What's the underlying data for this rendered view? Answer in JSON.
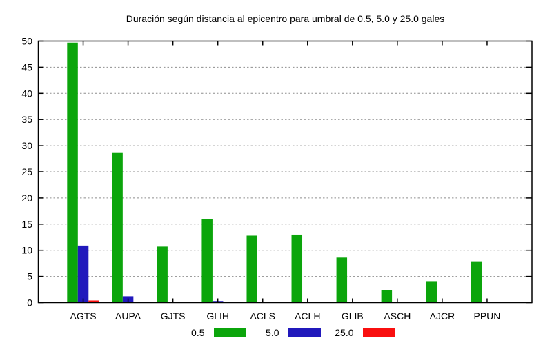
{
  "title": "Duración según distancia al epicentro para umbral de 0.5, 5.0 y 25.0 gales",
  "chart_data": {
    "type": "bar",
    "title": "Duración según distancia al epicentro para umbral de 0.5, 5.0 y 25.0 gales",
    "categories": [
      "AGTS",
      "AUPA",
      "GJTS",
      "GLIH",
      "ACLS",
      "ACLH",
      "GLIB",
      "ASCH",
      "AJCR",
      "PPUN"
    ],
    "series": [
      {
        "name": "0.5",
        "color": "#0ba50b",
        "values": [
          49.7,
          28.6,
          10.7,
          16.0,
          12.8,
          13.0,
          8.6,
          2.4,
          4.1,
          7.9
        ]
      },
      {
        "name": "5.0",
        "color": "#2119bc",
        "values": [
          10.9,
          1.2,
          0,
          0.3,
          0,
          0,
          0,
          0,
          0,
          0
        ]
      },
      {
        "name": "25.0",
        "color": "#f90f0f",
        "values": [
          0.4,
          0,
          0,
          0,
          0,
          0,
          0,
          0,
          0,
          0
        ]
      }
    ],
    "xlabel": "",
    "ylabel": "",
    "ylim": [
      0,
      50
    ],
    "ytick_step": 5,
    "yticklabels": [
      "0",
      "5",
      "10",
      "15",
      "20",
      "25",
      "30",
      "35",
      "40",
      "45",
      "50"
    ],
    "grid": true,
    "grid_style": "dashed",
    "legend_position": "bottom-center",
    "background": "#ffffff",
    "axis_color": "#000000",
    "grid_color": "#8e8e8e"
  }
}
